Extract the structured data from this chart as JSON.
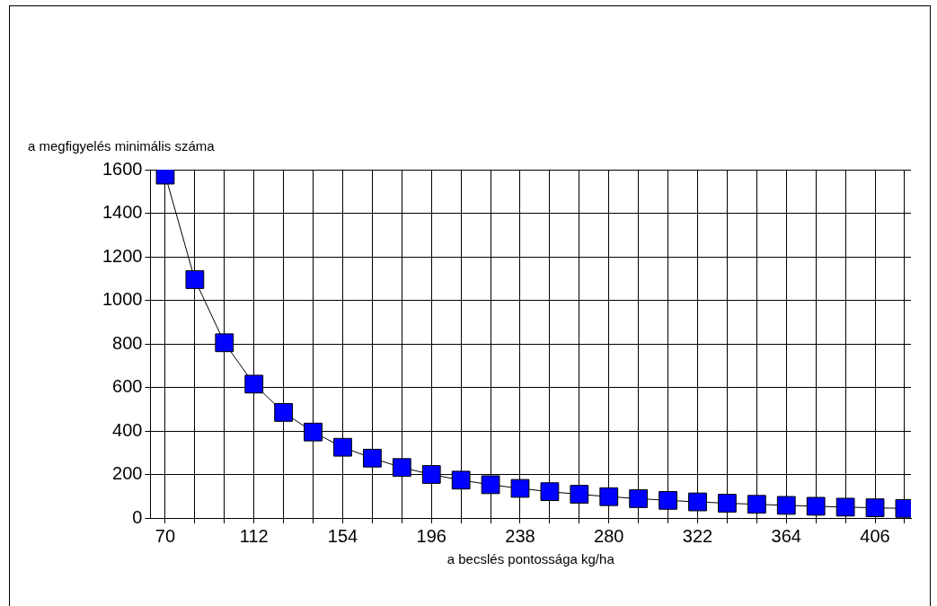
{
  "chart_data": {
    "type": "line",
    "xlabel": "a becslés pontossága kg/ha",
    "ylabel": "a megfigyelés minimális száma",
    "x": [
      70,
      84,
      98,
      112,
      126,
      140,
      154,
      168,
      182,
      196,
      210,
      224,
      238,
      252,
      266,
      280,
      294,
      308,
      322,
      336,
      350,
      364,
      378,
      392,
      406,
      420
    ],
    "series": [
      {
        "color": "#0000ff",
        "values": [
          1575,
          1095,
          805,
          615,
          485,
          395,
          325,
          275,
          232,
          200,
          174,
          153,
          136,
          121,
          109,
          98,
          89,
          81,
          74,
          68,
          63,
          58,
          54,
          50,
          47,
          44
        ]
      }
    ],
    "xlim": [
      63,
      423
    ],
    "ylim": [
      0,
      1600
    ],
    "xticks": [
      70,
      {
        "value": 84,
        "label": null
      },
      {
        "value": 98,
        "label": null
      },
      112,
      {
        "value": 126,
        "label": null
      },
      {
        "value": 140,
        "label": null
      },
      154,
      {
        "value": 168,
        "label": null
      },
      {
        "value": 182,
        "label": null
      },
      196,
      {
        "value": 210,
        "label": null
      },
      {
        "value": 224,
        "label": null
      },
      238,
      {
        "value": 252,
        "label": null
      },
      {
        "value": 266,
        "label": null
      },
      280,
      {
        "value": 294,
        "label": null
      },
      {
        "value": 308,
        "label": null
      },
      322,
      {
        "value": 336,
        "label": null
      },
      {
        "value": 350,
        "label": null
      },
      364,
      {
        "value": 378,
        "label": null
      },
      {
        "value": 392,
        "label": null
      },
      406,
      {
        "value": 420,
        "label": null
      }
    ],
    "yticks": [
      0,
      200,
      400,
      600,
      800,
      1000,
      1200,
      1400,
      1600
    ],
    "grid": true,
    "legend": false,
    "marker": "square",
    "line_style": "solid"
  }
}
